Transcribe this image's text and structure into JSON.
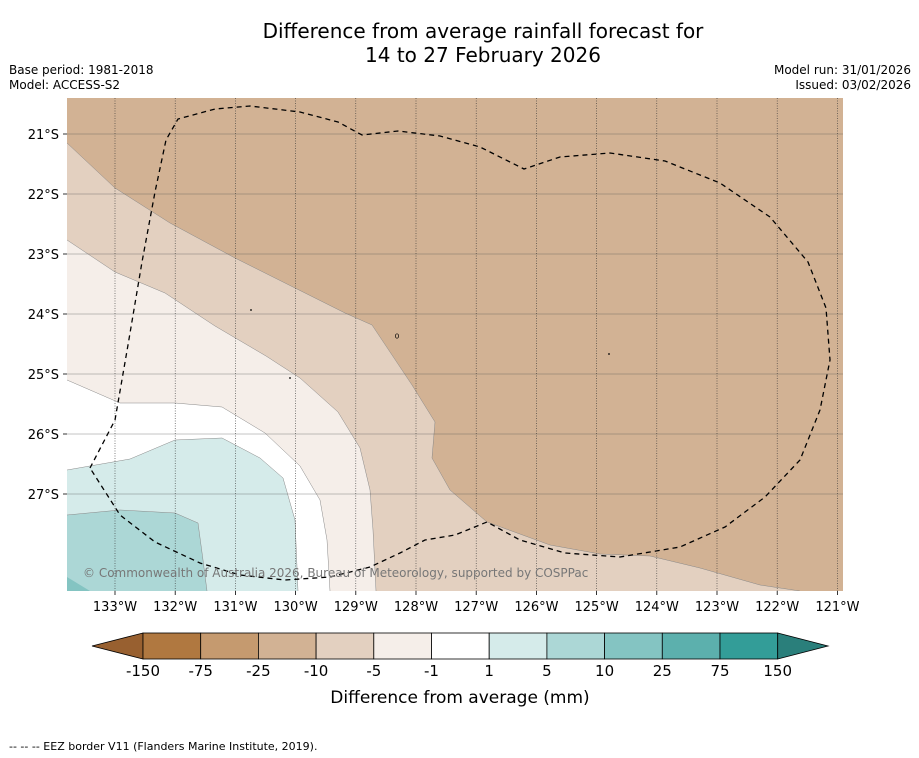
{
  "title_line1": "Difference from average rainfall forecast for",
  "title_line2": "14 to 27 February 2026",
  "meta": {
    "base_period": "Base period: 1981-2018",
    "model": "Model: ACCESS-S2",
    "model_run": "Model run: 31/01/2026",
    "issued": "Issued: 03/02/2026"
  },
  "map": {
    "lat_labels": [
      "21°S",
      "22°S",
      "23°S",
      "24°S",
      "25°S",
      "26°S",
      "27°S"
    ],
    "lon_labels": [
      "133°W",
      "132°W",
      "131°W",
      "130°W",
      "129°W",
      "128°W",
      "127°W",
      "126°W",
      "125°W",
      "124°W",
      "123°W",
      "122°W",
      "121°W"
    ],
    "copyright": "© Commonwealth of Australia 2026, Bureau of Meteorology, supported by COSPPac"
  },
  "colorbar": {
    "label": "Difference from average (mm)",
    "ticks": [
      "-150",
      "-75",
      "-25",
      "-10",
      "-5",
      "-1",
      "1",
      "5",
      "10",
      "25",
      "75",
      "150"
    ],
    "colors": [
      "#b07840",
      "#c59a6f",
      "#d2b294",
      "#e3d0c0",
      "#f5eee9",
      "#ffffff",
      "#d5ebea",
      "#acd7d6",
      "#84c4c2",
      "#5cb0ad",
      "#339d98"
    ],
    "under_color": "#986030",
    "over_color": "#2a7f7b"
  },
  "footer": "--  --  -- EEZ border V11 (Flanders Marine Institute, 2019)."
}
